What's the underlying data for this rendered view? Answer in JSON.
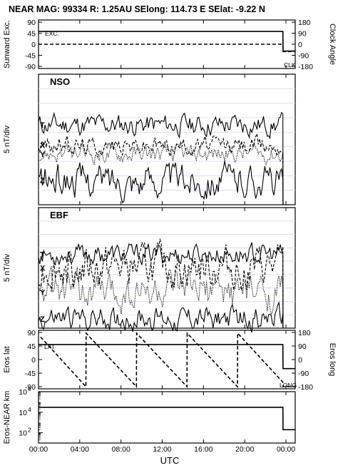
{
  "title": "NEAR MAG: 99334  R: 1.25AU  SElong: 114.73 E  SElat:  -9.22 N",
  "x_axis": {
    "label": "UTC",
    "ticks": [
      "00:00",
      "04:00",
      "08:00",
      "12:00",
      "16:00",
      "20:00",
      "00:00"
    ],
    "tick_hours": [
      0,
      4,
      8,
      12,
      16,
      20,
      24
    ],
    "range_hours": [
      0,
      24.9
    ]
  },
  "chart_data": [
    {
      "type": "line",
      "panel": "sunward-exc-clock",
      "ylabel": "Sunward Exc.",
      "ylabel_right": "Clock Angle",
      "yticks": [
        "90",
        "45",
        "0",
        "-45",
        "-90"
      ],
      "yticks_right": [
        "180",
        "90",
        "0",
        "-90",
        "-180"
      ],
      "ylim": [
        -90,
        90
      ],
      "ylim_right": [
        -180,
        180
      ],
      "annotations": [
        "EXC.",
        "CLK"
      ],
      "series": [
        {
          "label": "EXC.",
          "style": "solid",
          "x": [
            0,
            23.7,
            23.72,
            24.9
          ],
          "y": [
            52,
            52,
            -28,
            -28
          ]
        },
        {
          "label": "CLK",
          "style": "dashed",
          "axis": "right",
          "x": [
            0,
            23.7,
            23.72,
            24.9
          ],
          "y": [
            0,
            0,
            -60,
            -60
          ]
        }
      ]
    },
    {
      "type": "line",
      "panel": "NSO",
      "ylabel": "5 nT/div",
      "components": [
        "T",
        "X",
        "Y",
        "Z"
      ],
      "series_baselines": {
        "T": 1.0,
        "X": -0.4,
        "Y": -1.0,
        "Z": -2.8
      },
      "series_amplitudes": {
        "T": 0.3,
        "X": 0.25,
        "Y": 0.25,
        "Z": 0.45
      }
    },
    {
      "type": "line",
      "panel": "EBF",
      "ylabel": "5 nT/div",
      "components": [
        "T",
        "X",
        "Y",
        "Z"
      ],
      "series_baselines": {
        "T": 1.0,
        "X": 0.0,
        "Y": -1.8,
        "Z": -3.8
      },
      "series_amplitudes": {
        "T": 0.3,
        "X": 0.6,
        "Y": 0.55,
        "Z": 0.35
      }
    },
    {
      "type": "line",
      "panel": "eros-lat-long",
      "ylabel": "Eros lat",
      "ylabel_right": "Eros long",
      "yticks": [
        "90",
        "45",
        "0",
        "-45",
        "-90"
      ],
      "yticks_right": [
        "180",
        "90",
        "0",
        "-90",
        "-180"
      ],
      "ylim": [
        -90,
        90
      ],
      "ylim_right": [
        -180,
        180
      ],
      "annotations": [
        "LAT",
        "LONG"
      ],
      "series": [
        {
          "label": "LAT",
          "style": "solid",
          "x": [
            0,
            23.7,
            23.72,
            24.9
          ],
          "y": [
            50,
            50,
            -30,
            -30
          ]
        },
        {
          "label": "LONG",
          "style": "dashed",
          "axis": "right",
          "x": [
            0.2,
            4.6,
            4.62,
            9.5,
            9.52,
            14.4,
            14.42,
            19.3,
            19.32,
            23.7,
            23.72,
            24.9
          ],
          "y": [
            150,
            -180,
            175,
            -180,
            175,
            -180,
            175,
            -180,
            175,
            -150,
            -180,
            -180
          ]
        }
      ]
    },
    {
      "type": "line",
      "panel": "eros-near-distance",
      "ylabel": "Eros-NEAR km",
      "yscale": "log",
      "ylim": [
        10,
        1000000
      ],
      "yticks": [
        "10^6",
        "10^4",
        "10^2"
      ],
      "series": [
        {
          "style": "solid",
          "x": [
            0,
            23.7,
            23.72,
            24.9
          ],
          "y": [
            30000,
            30000,
            200,
            200
          ]
        }
      ]
    }
  ]
}
